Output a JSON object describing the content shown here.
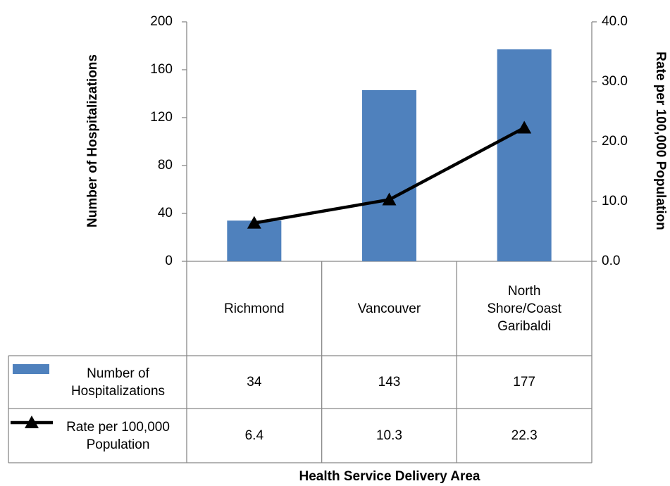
{
  "chart_data": {
    "type": "bar_line_table",
    "x_label": "Health Service Delivery Area",
    "y_label": "Number of Hospitalizations",
    "y2_label": "Rate per 100,000 Population",
    "categories": [
      "Richmond",
      "Vancouver",
      "North Shore/Coast Garibaldi"
    ],
    "series": [
      {
        "name": "Number of Hospitalizations",
        "type": "bar",
        "color": "#4f81bd",
        "values": [
          34,
          143,
          177
        ]
      },
      {
        "name": "Rate per 100,000 Population",
        "type": "line",
        "axis": "y2",
        "color": "#000000",
        "values": [
          6.4,
          10.3,
          22.3
        ]
      }
    ],
    "ylim": [
      0,
      200
    ],
    "yticks": [
      0,
      40,
      80,
      120,
      160,
      200
    ],
    "y2lim": [
      0,
      40
    ],
    "y2ticks": [
      {
        "value": 0,
        "label": "0.0"
      },
      {
        "value": 10,
        "label": "10.0"
      },
      {
        "value": 20,
        "label": "20.0"
      },
      {
        "value": 30,
        "label": "30.0"
      },
      {
        "value": 40,
        "label": "40.0"
      }
    ]
  }
}
